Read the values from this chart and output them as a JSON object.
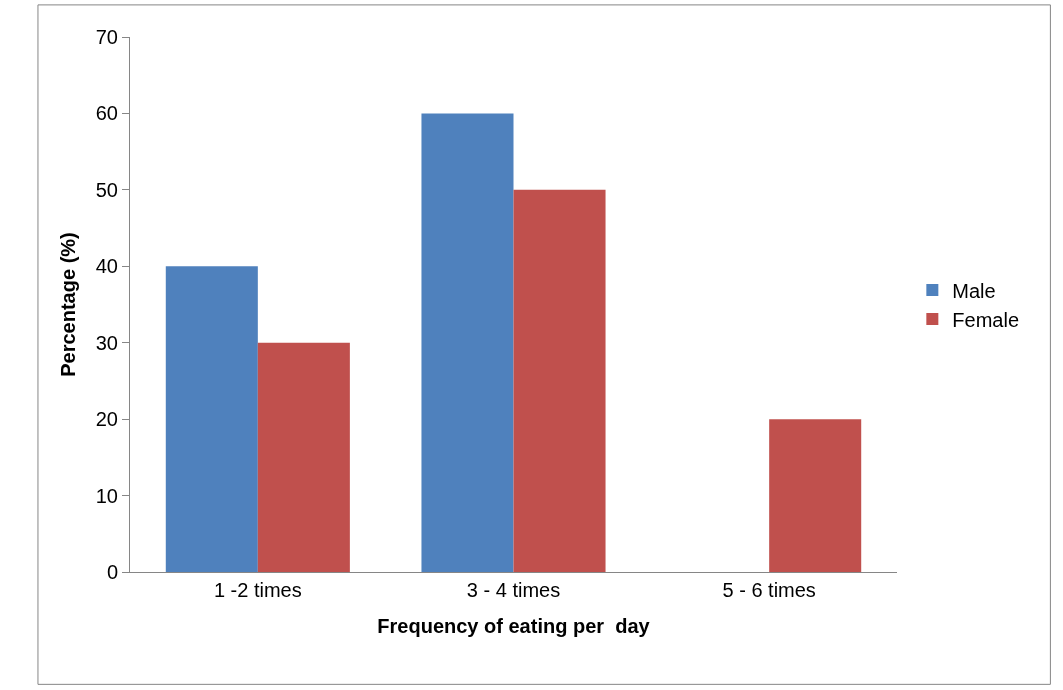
{
  "chart_data": {
    "type": "bar",
    "xlabel": "Frequency of eating per  day",
    "ylabel": "Percentage (%)",
    "categories": [
      "1 -2 times",
      "3 - 4 times",
      "5 - 6 times"
    ],
    "series": [
      {
        "name": "Male",
        "color": "#4f81bd",
        "values": [
          40,
          60,
          0
        ]
      },
      {
        "name": "Female",
        "color": "#c0504d",
        "values": [
          30,
          50,
          20
        ]
      }
    ],
    "ylim": [
      0,
      70
    ],
    "yticks": [
      0,
      10,
      20,
      30,
      40,
      50,
      60,
      70
    ],
    "legend": "right"
  }
}
